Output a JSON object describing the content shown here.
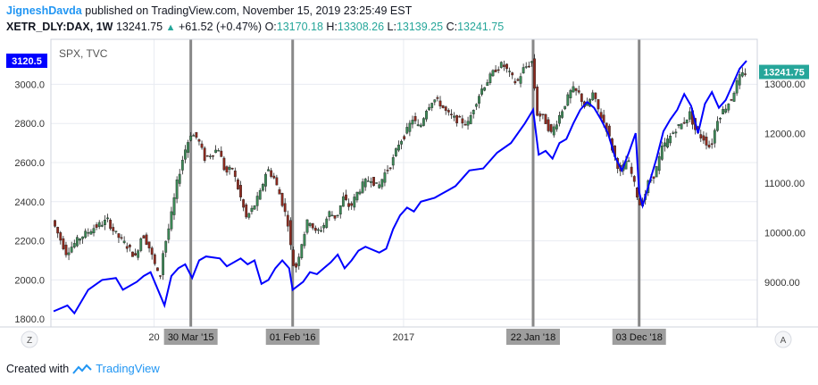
{
  "header": {
    "author": "JigneshDavda",
    "published_text": "published on TradingView.com, November 15, 2019 23:25:49 EST",
    "symbol": "XETR_DLY:DAX, 1W",
    "price": "13241.75",
    "change": "+61.52 (+0.47%)",
    "o_label": "O:",
    "o_value": "13170.18",
    "h_label": "H:",
    "h_value": "13308.26",
    "l_label": "L:",
    "l_value": "13139.25",
    "c_label": "C:",
    "c_value": "13241.75"
  },
  "footer": {
    "created_with": "Created with",
    "brand": "TradingView"
  },
  "controls": {
    "left_scale_button": "Z",
    "right_scale_button": "A"
  },
  "chart_data": {
    "type": "candlestick+line",
    "overlay_legend": "SPX, TVC",
    "left_axis": {
      "series": "SPX",
      "ticks": [
        1800,
        2000,
        2200,
        2400,
        2600,
        2800,
        3000
      ],
      "range": [
        1760,
        3230
      ],
      "labels": [
        "1800.0",
        "2000.0",
        "2200.0",
        "2400.0",
        "2600.0",
        "2800.0",
        "3000.0"
      ],
      "current_badge": "3120.5",
      "badge_color": "#0000ff"
    },
    "right_axis": {
      "series": "DAX",
      "ticks": [
        9000,
        10000,
        11000,
        12000,
        13000
      ],
      "range": [
        8100,
        13900
      ],
      "labels": [
        "9000.00",
        "10000.00",
        "11000.00",
        "12000.00",
        "13000.00"
      ],
      "current_badge": "13241.75",
      "badge_color": "#26a69a"
    },
    "x_axis": {
      "ticks": [
        {
          "label": "20",
          "pos": 0.145
        },
        {
          "label": "2017",
          "pos": 0.505
        }
      ]
    },
    "vertical_markers": [
      {
        "label": "30 Mar '15",
        "pos": 0.198
      },
      {
        "label": "01 Feb '16",
        "pos": 0.345
      },
      {
        "label": "22 Jan '18",
        "pos": 0.692
      },
      {
        "label": "03 Dec '18",
        "pos": 0.845
      }
    ],
    "spx_line": {
      "color": "#0000ff",
      "points": [
        [
          0.0,
          1840
        ],
        [
          0.02,
          1870
        ],
        [
          0.03,
          1830
        ],
        [
          0.05,
          1950
        ],
        [
          0.07,
          2000
        ],
        [
          0.09,
          2010
        ],
        [
          0.1,
          1950
        ],
        [
          0.12,
          1990
        ],
        [
          0.13,
          2020
        ],
        [
          0.14,
          2040
        ],
        [
          0.16,
          1870
        ],
        [
          0.17,
          2020
        ],
        [
          0.18,
          2060
        ],
        [
          0.19,
          2080
        ],
        [
          0.2,
          2010
        ],
        [
          0.21,
          2100
        ],
        [
          0.22,
          2120
        ],
        [
          0.24,
          2110
        ],
        [
          0.25,
          2070
        ],
        [
          0.27,
          2110
        ],
        [
          0.28,
          2080
        ],
        [
          0.29,
          2100
        ],
        [
          0.3,
          1980
        ],
        [
          0.31,
          2000
        ],
        [
          0.32,
          2060
        ],
        [
          0.33,
          2100
        ],
        [
          0.34,
          2060
        ],
        [
          0.345,
          1950
        ],
        [
          0.36,
          1990
        ],
        [
          0.37,
          2040
        ],
        [
          0.38,
          2030
        ],
        [
          0.39,
          2060
        ],
        [
          0.4,
          2090
        ],
        [
          0.41,
          2130
        ],
        [
          0.42,
          2060
        ],
        [
          0.43,
          2100
        ],
        [
          0.44,
          2150
        ],
        [
          0.45,
          2170
        ],
        [
          0.47,
          2140
        ],
        [
          0.48,
          2160
        ],
        [
          0.49,
          2260
        ],
        [
          0.5,
          2330
        ],
        [
          0.51,
          2370
        ],
        [
          0.52,
          2350
        ],
        [
          0.53,
          2400
        ],
        [
          0.55,
          2420
        ],
        [
          0.56,
          2440
        ],
        [
          0.57,
          2460
        ],
        [
          0.58,
          2480
        ],
        [
          0.6,
          2560
        ],
        [
          0.62,
          2570
        ],
        [
          0.64,
          2650
        ],
        [
          0.66,
          2700
        ],
        [
          0.68,
          2800
        ],
        [
          0.692,
          2870
        ],
        [
          0.7,
          2640
        ],
        [
          0.71,
          2660
        ],
        [
          0.72,
          2620
        ],
        [
          0.73,
          2700
        ],
        [
          0.74,
          2720
        ],
        [
          0.75,
          2800
        ],
        [
          0.76,
          2870
        ],
        [
          0.77,
          2910
        ],
        [
          0.78,
          2880
        ],
        [
          0.79,
          2820
        ],
        [
          0.8,
          2750
        ],
        [
          0.81,
          2630
        ],
        [
          0.82,
          2560
        ],
        [
          0.83,
          2650
        ],
        [
          0.84,
          2750
        ],
        [
          0.845,
          2450
        ],
        [
          0.85,
          2380
        ],
        [
          0.86,
          2500
        ],
        [
          0.87,
          2620
        ],
        [
          0.88,
          2760
        ],
        [
          0.89,
          2820
        ],
        [
          0.9,
          2870
        ],
        [
          0.91,
          2950
        ],
        [
          0.92,
          2890
        ],
        [
          0.93,
          2750
        ],
        [
          0.94,
          2900
        ],
        [
          0.95,
          2960
        ],
        [
          0.96,
          2880
        ],
        [
          0.97,
          2920
        ],
        [
          0.98,
          3000
        ],
        [
          0.99,
          3080
        ],
        [
          1.0,
          3120
        ]
      ]
    },
    "dax_path": [
      [
        0.0,
        10250
      ],
      [
        0.02,
        9600
      ],
      [
        0.04,
        9900
      ],
      [
        0.06,
        10100
      ],
      [
        0.08,
        10250
      ],
      [
        0.09,
        10000
      ],
      [
        0.11,
        9700
      ],
      [
        0.12,
        9500
      ],
      [
        0.13,
        10000
      ],
      [
        0.14,
        9700
      ],
      [
        0.155,
        9050
      ],
      [
        0.16,
        9600
      ],
      [
        0.17,
        10200
      ],
      [
        0.18,
        11000
      ],
      [
        0.19,
        11600
      ],
      [
        0.2,
        12000
      ],
      [
        0.21,
        11900
      ],
      [
        0.22,
        11500
      ],
      [
        0.24,
        11700
      ],
      [
        0.25,
        11200
      ],
      [
        0.26,
        11300
      ],
      [
        0.27,
        10800
      ],
      [
        0.28,
        10300
      ],
      [
        0.29,
        10500
      ],
      [
        0.3,
        10800
      ],
      [
        0.31,
        11300
      ],
      [
        0.32,
        11100
      ],
      [
        0.33,
        10700
      ],
      [
        0.34,
        10200
      ],
      [
        0.345,
        9600
      ],
      [
        0.35,
        9200
      ],
      [
        0.36,
        9800
      ],
      [
        0.37,
        10300
      ],
      [
        0.38,
        10000
      ],
      [
        0.39,
        10100
      ],
      [
        0.4,
        10400
      ],
      [
        0.41,
        10300
      ],
      [
        0.42,
        10700
      ],
      [
        0.43,
        10500
      ],
      [
        0.44,
        10800
      ],
      [
        0.45,
        11000
      ],
      [
        0.46,
        11100
      ],
      [
        0.47,
        10900
      ],
      [
        0.48,
        11200
      ],
      [
        0.49,
        11400
      ],
      [
        0.5,
        11800
      ],
      [
        0.51,
        12000
      ],
      [
        0.52,
        12300
      ],
      [
        0.53,
        12100
      ],
      [
        0.54,
        12500
      ],
      [
        0.55,
        12700
      ],
      [
        0.56,
        12600
      ],
      [
        0.57,
        12400
      ],
      [
        0.58,
        12300
      ],
      [
        0.6,
        12200
      ],
      [
        0.61,
        12600
      ],
      [
        0.62,
        12900
      ],
      [
        0.63,
        13100
      ],
      [
        0.64,
        13300
      ],
      [
        0.65,
        13400
      ],
      [
        0.66,
        13200
      ],
      [
        0.67,
        13000
      ],
      [
        0.68,
        13300
      ],
      [
        0.692,
        13450
      ],
      [
        0.7,
        12400
      ],
      [
        0.71,
        12300
      ],
      [
        0.72,
        12000
      ],
      [
        0.73,
        12300
      ],
      [
        0.74,
        12600
      ],
      [
        0.75,
        12900
      ],
      [
        0.76,
        12800
      ],
      [
        0.77,
        12500
      ],
      [
        0.78,
        12800
      ],
      [
        0.79,
        12400
      ],
      [
        0.8,
        12100
      ],
      [
        0.81,
        11600
      ],
      [
        0.82,
        11200
      ],
      [
        0.83,
        11500
      ],
      [
        0.845,
        10700
      ],
      [
        0.85,
        10500
      ],
      [
        0.86,
        11000
      ],
      [
        0.87,
        11200
      ],
      [
        0.88,
        11700
      ],
      [
        0.89,
        11900
      ],
      [
        0.9,
        12100
      ],
      [
        0.91,
        12200
      ],
      [
        0.92,
        12400
      ],
      [
        0.93,
        12000
      ],
      [
        0.94,
        11900
      ],
      [
        0.95,
        11700
      ],
      [
        0.96,
        12300
      ],
      [
        0.97,
        12500
      ],
      [
        0.98,
        12700
      ],
      [
        0.99,
        13100
      ],
      [
        1.0,
        13241
      ]
    ],
    "colors": {
      "up": "#3c8a57",
      "down": "#8e2a1e",
      "grid": "#e9ecf2",
      "marker": "#888888",
      "marker_label_bg": "#9e9e9e"
    }
  }
}
